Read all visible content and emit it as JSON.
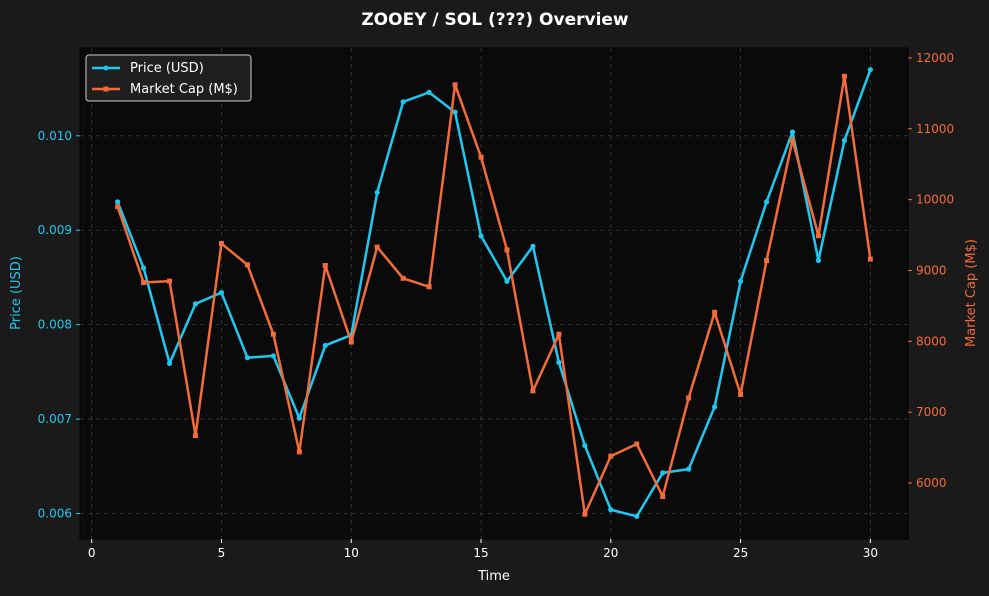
{
  "chart_data": {
    "type": "line",
    "title": "ZOOEY / SOL (???) Overview",
    "xlabel": "Time",
    "ylabel_left": "Price (USD)",
    "ylabel_right": "Market Cap (M$)",
    "xlim": [
      -0.45,
      31.45
    ],
    "ylim_left": [
      0.00573,
      0.01093
    ],
    "ylim_right": [
      5210,
      12140
    ],
    "x_ticks": [
      0,
      5,
      10,
      15,
      20,
      25,
      30
    ],
    "y_ticks_left": [
      "0.006",
      "0.007",
      "0.008",
      "0.009",
      "0.010"
    ],
    "y_ticks_right": [
      "6000",
      "7000",
      "8000",
      "9000",
      "10000",
      "11000",
      "12000"
    ],
    "grid": true,
    "legend_position": "top-left",
    "x": [
      1,
      2,
      3,
      4,
      5,
      6,
      7,
      8,
      9,
      10,
      11,
      12,
      13,
      14,
      15,
      16,
      17,
      18,
      19,
      20,
      21,
      22,
      23,
      24,
      25,
      26,
      27,
      28,
      29,
      30
    ],
    "series": [
      {
        "name": "Price (USD)",
        "axis": "left",
        "color": "#1ec8f0",
        "marker": "circle",
        "values": [
          0.0093,
          0.0086,
          0.00759,
          0.00822,
          0.00834,
          0.00765,
          0.00767,
          0.00701,
          0.00778,
          0.00789,
          0.0094,
          0.01036,
          0.01046,
          0.01025,
          0.00894,
          0.00846,
          0.00883,
          0.0076,
          0.00672,
          0.00604,
          0.00597,
          0.00643,
          0.00647,
          0.00713,
          0.00846,
          0.0093,
          0.01004,
          0.00868,
          0.00995,
          0.0107
        ]
      },
      {
        "name": "Market Cap (M$)",
        "axis": "right",
        "color": "#f26b3a",
        "marker": "square",
        "values": [
          9900,
          8830,
          8850,
          6670,
          9380,
          9080,
          8100,
          6440,
          9070,
          7990,
          9330,
          8890,
          8770,
          11620,
          10600,
          9290,
          7300,
          8100,
          5560,
          6380,
          6550,
          5810,
          7200,
          8410,
          7250,
          9140,
          10840,
          9490,
          11740,
          9160
        ]
      }
    ]
  },
  "colors": {
    "background": "#1a1a1a",
    "plot_background": "#0a0a0a",
    "grid": "#3a3a3a",
    "text": "#ffffff",
    "price": "#1ec8f0",
    "market_cap": "#f26b3a"
  }
}
